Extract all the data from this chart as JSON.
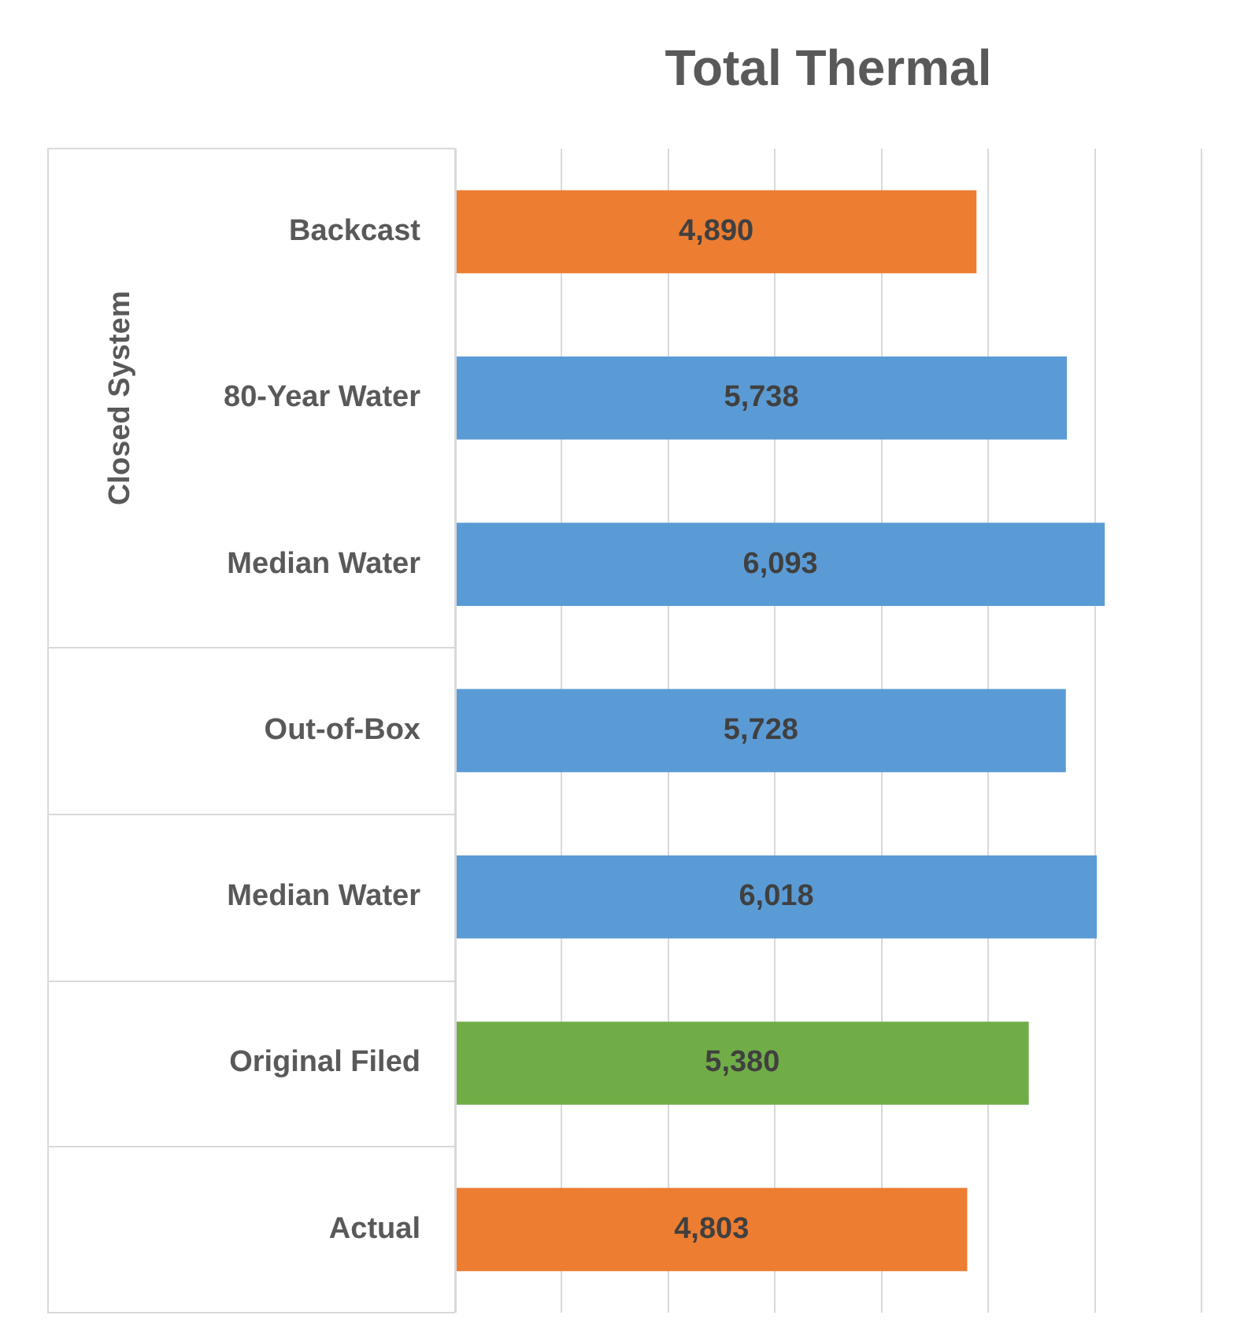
{
  "chart_data": {
    "type": "bar",
    "orientation": "horizontal",
    "title": "Total Thermal",
    "categories": [
      "Backcast",
      "80-Year Water",
      "Median Water",
      "Out-of-Box",
      "Median Water",
      "Original Filed",
      "Actual"
    ],
    "values": [
      4890,
      5738,
      6093,
      5728,
      6018,
      5380,
      4803
    ],
    "colors": [
      "#ed7d31",
      "#5b9bd5",
      "#5b9bd5",
      "#5b9bd5",
      "#5b9bd5",
      "#70ad47",
      "#ed7d31"
    ],
    "annotations": [
      "Closed System"
    ],
    "value_labels": [
      "4,890",
      "5,738",
      "6,093",
      "5,728",
      "6,018",
      "5,380",
      "4,803"
    ],
    "tick_labels": "y",
    "grid": "x",
    "legend": false
  }
}
